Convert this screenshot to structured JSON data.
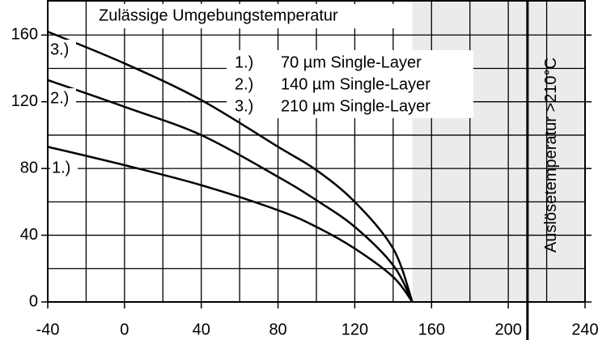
{
  "chart_data": {
    "type": "line",
    "title": "Zulässige Umgebungstemperatur",
    "x": [
      -40,
      0,
      40,
      80,
      100,
      120,
      140,
      150
    ],
    "series": [
      {
        "label": "1.)",
        "name": "70 µm Single-Layer",
        "color": "#000000",
        "values": [
          93,
          82,
          70,
          55,
          45,
          32,
          15,
          0
        ]
      },
      {
        "label": "2.)",
        "name": "140 µm Single-Layer",
        "color": "#000000",
        "values": [
          133,
          117,
          100,
          75,
          61,
          45,
          22,
          0
        ]
      },
      {
        "label": "3.)",
        "name": "210 µm Single-Layer",
        "color": "#000000",
        "values": [
          162,
          143,
          121,
          93,
          79,
          60,
          32,
          0
        ]
      }
    ],
    "xlim": [
      -40,
      240
    ],
    "ylim": [
      0,
      181
    ],
    "xticks": [
      -40,
      0,
      40,
      80,
      120,
      160,
      200,
      240
    ],
    "yticks": [
      0,
      40,
      80,
      120,
      160
    ],
    "x_minor_ticks": [
      -20,
      20,
      60,
      100,
      140,
      180,
      220
    ],
    "y_minor_ticks": [
      20,
      60,
      100,
      140
    ],
    "grid": true,
    "shaded_range": [
      150,
      240
    ],
    "limit_line": {
      "value": 210,
      "label": "Auslösetemperatur >210°C"
    }
  }
}
